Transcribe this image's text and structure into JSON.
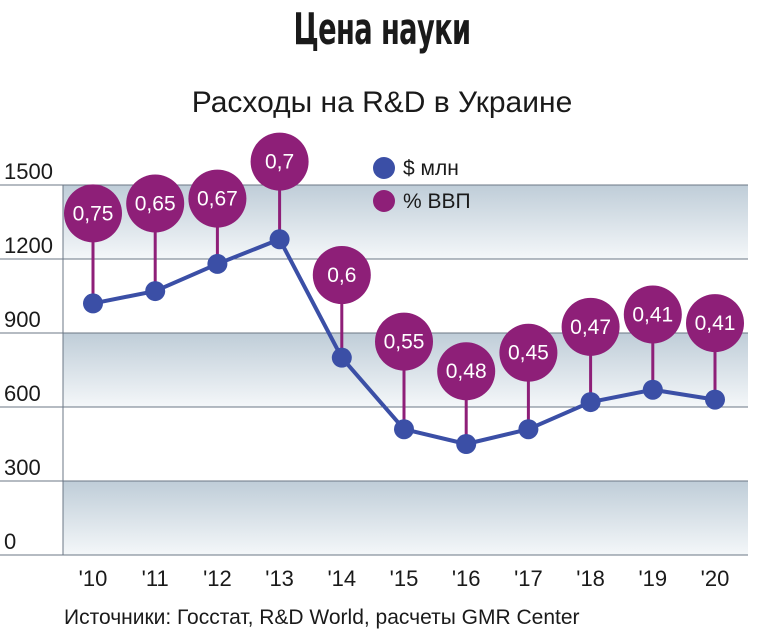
{
  "title": "Цена науки",
  "subtitle": "Расходы на R&D в Украине",
  "source": "Источники: Госстат, R&D World, расчеты GMR Center",
  "colors": {
    "line": "#3b4fa6",
    "bubble": "#8e1f78",
    "band_top": "#bfcdd8",
    "band_bottom": "#f4f7f9",
    "gridline": "#6b7785"
  },
  "chart_data": {
    "type": "line",
    "categories": [
      "'10",
      "'11",
      "'12",
      "'13",
      "'14",
      "'15",
      "'16",
      "'17",
      "'18",
      "'19",
      "'20"
    ],
    "series": [
      {
        "name": "$ млн",
        "values": [
          1020,
          1070,
          1180,
          1280,
          800,
          510,
          450,
          510,
          620,
          670,
          630
        ]
      },
      {
        "name": "% ВВП",
        "values": [
          "0,75",
          "0,65",
          "0,67",
          "0,7",
          "0,6",
          "0,55",
          "0,48",
          "0,45",
          "0,47",
          "0,41",
          "0,41"
        ]
      }
    ],
    "bubble_levels": [
      1385,
      1425,
      1445,
      1595,
      1135,
      865,
      745,
      820,
      925,
      975,
      940
    ],
    "yticks": [
      "0",
      "300",
      "600",
      "900",
      "1200",
      "1500"
    ],
    "ylim": [
      0,
      1500
    ],
    "legend_position": "top-center",
    "grid": true
  }
}
